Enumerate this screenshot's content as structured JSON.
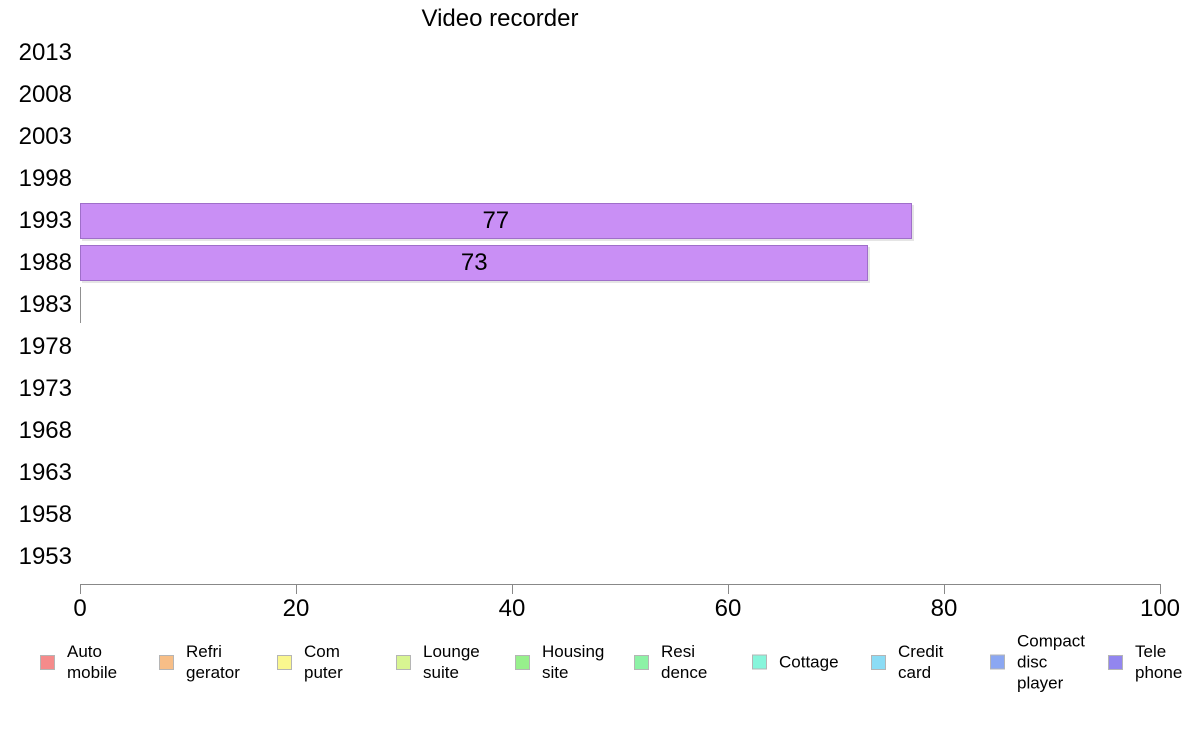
{
  "chart_data": {
    "type": "bar",
    "orientation": "horizontal",
    "title": "Video recorder",
    "categories": [
      "2013",
      "2008",
      "2003",
      "1998",
      "1993",
      "1988",
      "1983",
      "1978",
      "1973",
      "1968",
      "1963",
      "1958",
      "1953"
    ],
    "values": [
      null,
      null,
      null,
      null,
      77,
      73,
      0,
      null,
      null,
      null,
      null,
      null,
      null
    ],
    "value_labels": [
      "",
      "",
      "",
      "",
      "77",
      "73",
      "",
      "",
      "",
      "",
      "",
      "",
      ""
    ],
    "xlabel": "",
    "ylabel": "",
    "xlim": [
      0,
      100
    ],
    "x_ticks": [
      "0",
      "20",
      "40",
      "60",
      "80",
      "100"
    ],
    "grid": false,
    "legend_position": "bottom",
    "bar_color": "#c98ff5",
    "bar_border_color": "#9f6fc9",
    "zero_bar_color": "#909090",
    "axis_color": "#888888",
    "legend": [
      {
        "label": "Auto mobile",
        "color": "#f58b8b"
      },
      {
        "label": "Refri gerator",
        "color": "#f7be87"
      },
      {
        "label": "Com puter",
        "color": "#faf78f"
      },
      {
        "label": "Lounge suite",
        "color": "#d8f592"
      },
      {
        "label": "Housing site",
        "color": "#97f08c"
      },
      {
        "label": "Resi dence",
        "color": "#8df2a6"
      },
      {
        "label": "Cottage",
        "color": "#87f5db"
      },
      {
        "label": "Credit card",
        "color": "#8bdcf5"
      },
      {
        "label": "Compact disc player",
        "color": "#8ba7f2"
      },
      {
        "label": "Tele phone",
        "color": "#9286ef"
      }
    ]
  }
}
